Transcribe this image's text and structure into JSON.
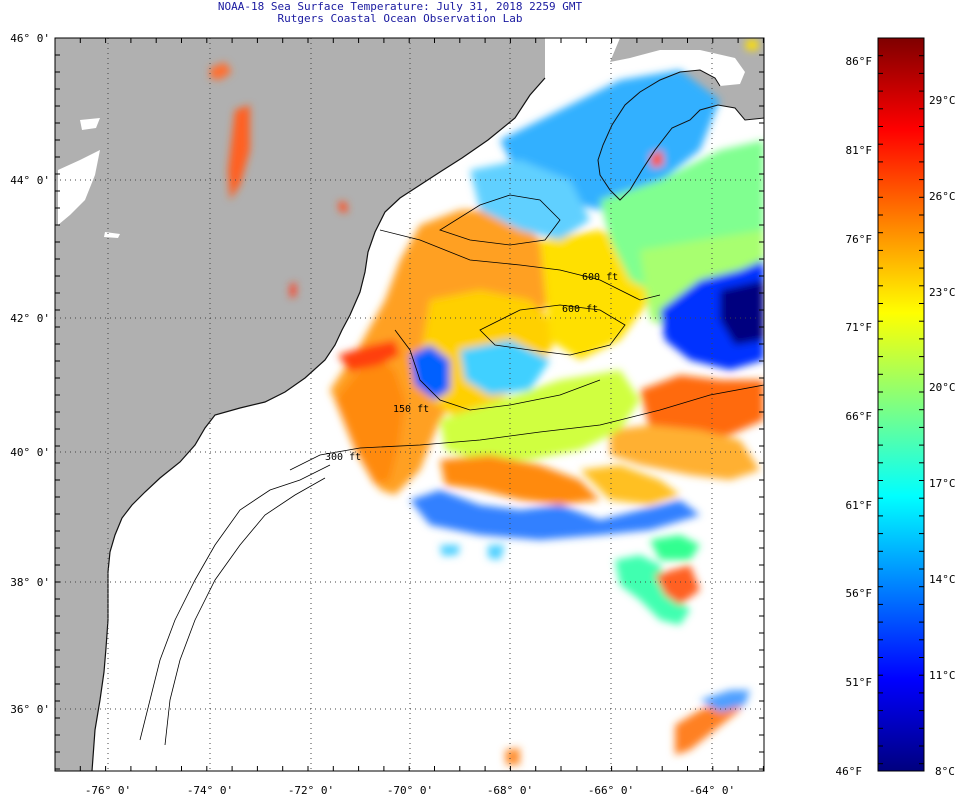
{
  "header": {
    "title": "NOAA-18 Sea Surface Temperature:  July 31, 2018 2259 GMT",
    "subtitle": "Rutgers Coastal Ocean Observation Lab"
  },
  "map": {
    "lat_labels": [
      "46° 0'",
      "44° 0'",
      "42° 0'",
      "40° 0'",
      "38° 0'",
      "36° 0'"
    ],
    "lon_labels": [
      "-76° 0'",
      "-74° 0'",
      "-72° 0'",
      "-70° 0'",
      "-68° 0'",
      "-66° 0'",
      "-64° 0'"
    ],
    "contours": [
      {
        "label": "600 ft"
      },
      {
        "label": "600 ft"
      },
      {
        "label": "150 ft"
      },
      {
        "label": "300 ft"
      }
    ],
    "colors": {
      "land": "#b0b0b0",
      "ocean_no_data": "#ffffff",
      "grid": "#555555"
    }
  },
  "colorbar": {
    "fahrenheit": [
      "86°F",
      "81°F",
      "76°F",
      "71°F",
      "66°F",
      "61°F",
      "56°F",
      "51°F",
      "46°F"
    ],
    "celsius": [
      "29°C",
      "26°C",
      "23°C",
      "20°C",
      "17°C",
      "14°C",
      "11°C",
      "8°C"
    ],
    "range_f": [
      46,
      88
    ],
    "gradient_colors": [
      "#00007f",
      "#0000ff",
      "#0080ff",
      "#00ffff",
      "#80ff80",
      "#ffff00",
      "#ff8000",
      "#ff0000",
      "#7f0000"
    ]
  }
}
